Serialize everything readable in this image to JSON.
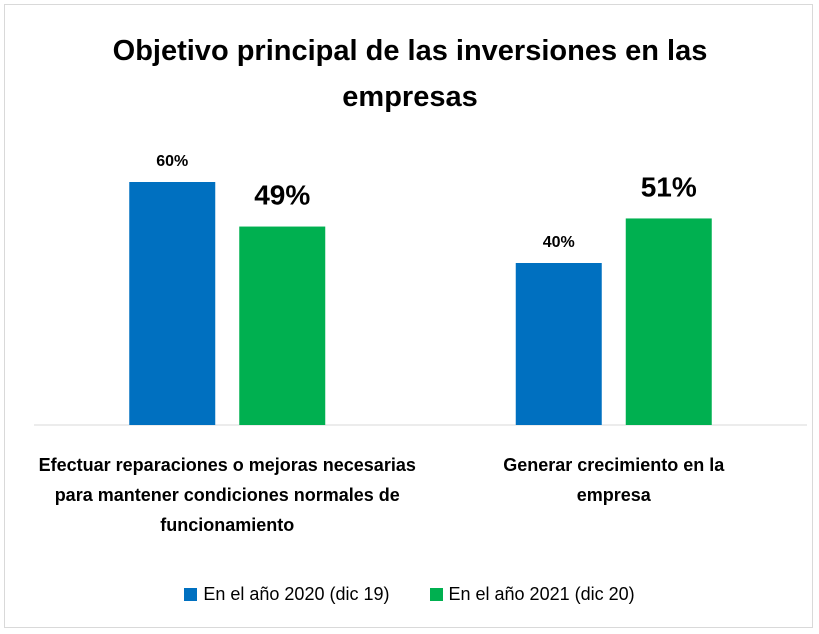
{
  "chart_data": {
    "type": "bar",
    "title": "Objetivo principal de las inversiones en las empresas",
    "categories": [
      "Efectuar reparaciones o mejoras necesarias para mantener condiciones normales de funcionamiento",
      "Generar crecimiento en la empresa"
    ],
    "series": [
      {
        "name": "En el año 2020 (dic 19)",
        "color": "#0070c0",
        "values": [
          60,
          40
        ],
        "value_labels": [
          "60%",
          "40%"
        ]
      },
      {
        "name": "En el año 2021 (dic 20)",
        "color": "#00b050",
        "values": [
          49,
          51
        ],
        "value_labels": [
          "49%",
          "51%"
        ]
      }
    ],
    "legend": "bottom"
  }
}
